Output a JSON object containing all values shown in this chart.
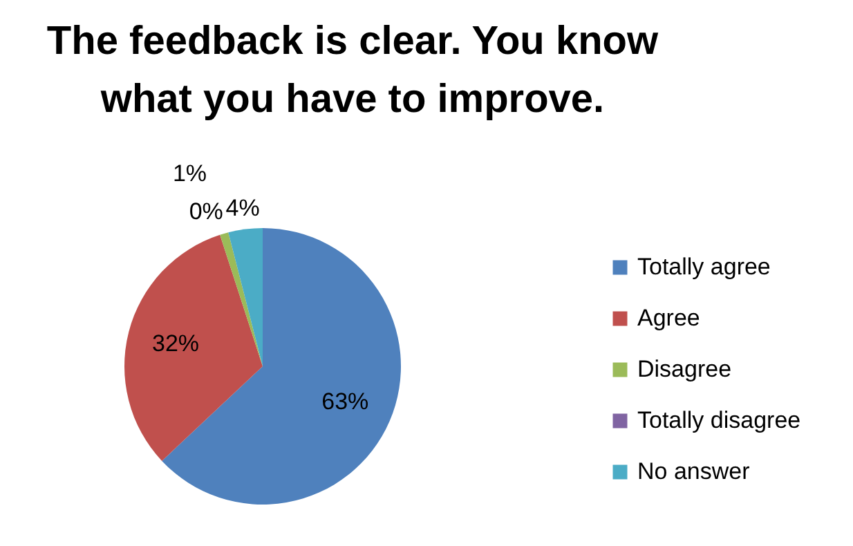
{
  "chart_data": {
    "type": "pie",
    "title": "The feedback is clear. You know what you have to improve.",
    "categories": [
      "Totally agree",
      "Agree",
      "Disagree",
      "Totally disagree",
      "No answer"
    ],
    "values": [
      63,
      32,
      1,
      0,
      4
    ],
    "value_labels": [
      "63%",
      "32%",
      "1%",
      "0%",
      "4%"
    ],
    "colors": [
      "#4f81bd",
      "#c0504d",
      "#9bbb59",
      "#8064a2",
      "#4bacc6"
    ],
    "legend": "right"
  }
}
